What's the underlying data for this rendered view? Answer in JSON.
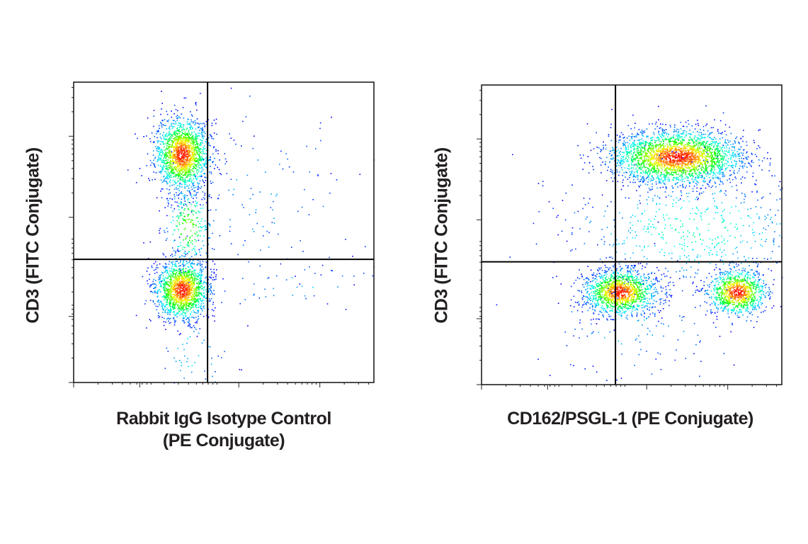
{
  "chart_data": [
    {
      "type": "scatter",
      "subtype": "flow-cytometry-density-dot-plot",
      "xlabel": [
        "Rabbit IgG Isotype Control",
        "(PE Conjugate)"
      ],
      "ylabel": "CD3 (FITC Conjugate)",
      "xscale": "log",
      "yscale": "log",
      "tick_labels": "none",
      "grid": false,
      "colormap": [
        "#0000ff",
        "#00ffff",
        "#00ff00",
        "#ffff00",
        "#ff0000"
      ],
      "axis_range_arbitrary": [
        0,
        100
      ],
      "quadrant_gate": {
        "x": 44.6,
        "y": 41
      },
      "populations": [
        {
          "center": [
            36,
            76
          ],
          "spread": [
            4.5,
            6
          ],
          "events": 1700
        },
        {
          "center": [
            36,
            31
          ],
          "spread": [
            4.5,
            5
          ],
          "events": 1500
        },
        {
          "center": [
            38,
            52
          ],
          "spread": [
            4,
            7
          ],
          "events": 250
        },
        {
          "center": [
            40,
            10
          ],
          "spread": [
            6,
            8
          ],
          "events": 60
        },
        {
          "center": [
            62,
            60
          ],
          "spread": [
            18,
            16
          ],
          "events": 120
        },
        {
          "center": [
            72,
            33
          ],
          "spread": [
            18,
            5
          ],
          "events": 50
        }
      ]
    },
    {
      "type": "scatter",
      "subtype": "flow-cytometry-density-dot-plot",
      "xlabel": [
        "CD162/PSGL-1 (PE Conjugate)"
      ],
      "ylabel": "CD3 (FITC Conjugate)",
      "xscale": "log",
      "yscale": "log",
      "tick_labels": "none",
      "grid": false,
      "colormap": [
        "#0000ff",
        "#00ffff",
        "#00ff00",
        "#ffff00",
        "#ff0000"
      ],
      "axis_range_arbitrary": [
        0,
        100
      ],
      "quadrant_gate": {
        "x": 44.6,
        "y": 41
      },
      "populations": [
        {
          "center": [
            65,
            76
          ],
          "spread": [
            11,
            4.5
          ],
          "events": 2600
        },
        {
          "center": [
            46,
            31
          ],
          "spread": [
            6,
            3.8
          ],
          "events": 1400
        },
        {
          "center": [
            85,
            31
          ],
          "spread": [
            5,
            3.8
          ],
          "events": 1000
        },
        {
          "center": [
            70,
            52
          ],
          "spread": [
            22,
            10
          ],
          "events": 600
        },
        {
          "center": [
            50,
            20
          ],
          "spread": [
            18,
            10
          ],
          "events": 120
        }
      ]
    }
  ]
}
